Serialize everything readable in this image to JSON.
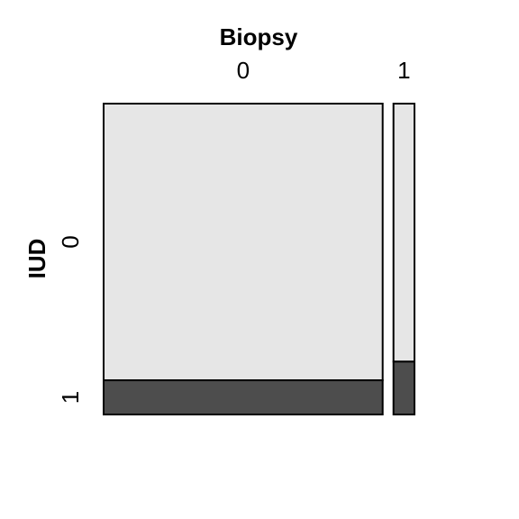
{
  "chart_data": {
    "type": "mosaic",
    "title": "Biopsy",
    "xlabel": "Biopsy",
    "ylabel": "IUD",
    "x_categories": [
      "0",
      "1"
    ],
    "y_categories": [
      "0",
      "1"
    ],
    "x_proportions": [
      0.93,
      0.07
    ],
    "conditional_proportions": [
      {
        "x": "0",
        "y0": 0.89,
        "y1": 0.11
      },
      {
        "x": "1",
        "y0": 0.83,
        "y1": 0.17
      }
    ],
    "colors": {
      "y0": "#e6e6e6",
      "y1": "#4d4d4d"
    }
  }
}
